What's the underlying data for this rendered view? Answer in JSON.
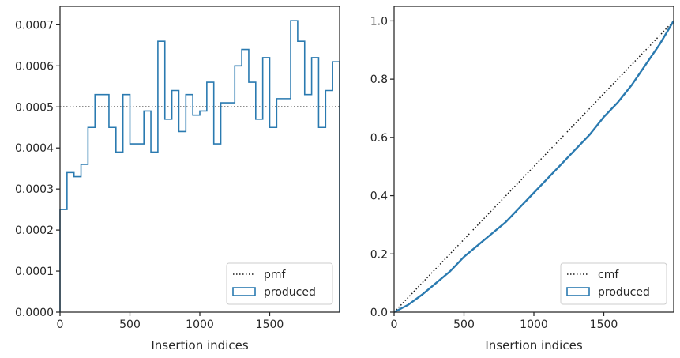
{
  "colors": {
    "produced": "#2a7ab0",
    "reference": "#1a1a1a",
    "axes": "#262626"
  },
  "chart_data": [
    {
      "type": "histogram-step",
      "title": "",
      "xlabel": "Insertion indices",
      "ylabel": "",
      "xlim": [
        0,
        2000
      ],
      "ylim": [
        0,
        0.000745
      ],
      "xticks": [
        0,
        500,
        1000,
        1500
      ],
      "xtick_labels": [
        "0",
        "500",
        "1000",
        "1500"
      ],
      "yticks": [
        0,
        0.0001,
        0.0002,
        0.0003,
        0.0004,
        0.0005,
        0.0006,
        0.0007
      ],
      "ytick_labels": [
        "0.0000",
        "0.0001",
        "0.0002",
        "0.0003",
        "0.0004",
        "0.0005",
        "0.0006",
        "0.0007"
      ],
      "grid": false,
      "legend_position": "lower-right",
      "reference": {
        "name": "pmf",
        "style": "dotted",
        "value": 0.0005
      },
      "series": [
        {
          "name": "produced",
          "bin_width": 50,
          "bin_start": 0,
          "values": [
            0.00025,
            0.00034,
            0.00033,
            0.00036,
            0.00045,
            0.00053,
            0.00053,
            0.00045,
            0.00039,
            0.00053,
            0.00041,
            0.00041,
            0.00049,
            0.00039,
            0.00066,
            0.00047,
            0.00054,
            0.00044,
            0.00053,
            0.00048,
            0.00049,
            0.00056,
            0.00041,
            0.00051,
            0.00051,
            0.0006,
            0.00064,
            0.00056,
            0.00047,
            0.00062,
            0.00045,
            0.00052,
            0.00052,
            0.00071,
            0.00066,
            0.00053,
            0.00062,
            0.00045,
            0.00054,
            0.00061
          ]
        }
      ]
    },
    {
      "type": "cumulative-step",
      "title": "",
      "xlabel": "Insertion indices",
      "ylabel": "",
      "xlim": [
        0,
        2000
      ],
      "ylim": [
        0,
        1.05
      ],
      "xticks": [
        0,
        500,
        1000,
        1500
      ],
      "xtick_labels": [
        "0",
        "500",
        "1000",
        "1500"
      ],
      "yticks": [
        0,
        0.2,
        0.4,
        0.6,
        0.8,
        1.0
      ],
      "ytick_labels": [
        "0.0",
        "0.2",
        "0.4",
        "0.6",
        "0.8",
        "1.0"
      ],
      "grid": false,
      "legend_position": "lower-right",
      "reference": {
        "name": "cmf",
        "style": "dotted",
        "from": [
          0,
          0
        ],
        "to": [
          2000,
          1.0
        ]
      },
      "series": [
        {
          "name": "produced",
          "x": [
            0,
            100,
            200,
            300,
            400,
            500,
            600,
            700,
            800,
            900,
            1000,
            1100,
            1200,
            1300,
            1400,
            1500,
            1600,
            1700,
            1800,
            1900,
            2000
          ],
          "y": [
            0.0,
            0.025,
            0.06,
            0.1,
            0.14,
            0.19,
            0.23,
            0.27,
            0.31,
            0.36,
            0.41,
            0.46,
            0.51,
            0.56,
            0.61,
            0.67,
            0.72,
            0.78,
            0.85,
            0.92,
            1.0
          ]
        }
      ]
    }
  ]
}
